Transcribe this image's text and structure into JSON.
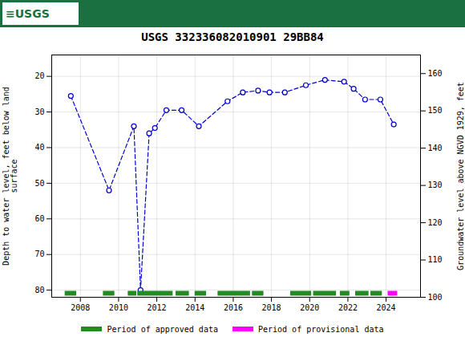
{
  "chart_data": {
    "type": "line",
    "title": "USGS 332336082010901 29BB84",
    "annotations": [
      "≡USGS"
    ],
    "ylabel": "Depth to water level, feet below land\nsurface",
    "y2label": "Groundwater level above NGVD 1929, feet",
    "x": [
      2007.5,
      2009.5,
      2010.8,
      2011.15,
      2011.6,
      2011.9,
      2012.5,
      2013.3,
      2014.2,
      2015.7,
      2016.5,
      2017.3,
      2017.9,
      2018.7,
      2019.8,
      2020.8,
      2021.8,
      2022.3,
      2022.9,
      2023.7,
      2024.4
    ],
    "values": [
      25.5,
      52.0,
      34.0,
      80.0,
      36.0,
      34.5,
      29.5,
      29.5,
      34.0,
      27.0,
      24.5,
      24.0,
      24.5,
      24.5,
      22.5,
      21.0,
      21.5,
      23.5,
      26.5,
      26.5,
      33.5
    ],
    "color": "#0000cc",
    "line_style": "dashed",
    "marker": "circle",
    "xlim": [
      2006.5,
      2025.8
    ],
    "xticks": [
      2008,
      2010,
      2012,
      2014,
      2016,
      2018,
      2020,
      2022,
      2024
    ],
    "ylim": [
      82,
      14
    ],
    "yticks": [
      20,
      30,
      40,
      50,
      60,
      70,
      80
    ],
    "y2lim": [
      100,
      165
    ],
    "y2ticks": [
      100,
      110,
      120,
      130,
      140,
      150,
      160
    ],
    "grid": true,
    "legend": "bottom",
    "periods": [
      {
        "name": "Period of approved data",
        "color": "#228B22",
        "ranges": [
          [
            2007.2,
            2007.8
          ],
          [
            2009.2,
            2009.8
          ],
          [
            2010.5,
            2010.95
          ],
          [
            2011.0,
            2012.85
          ],
          [
            2013.0,
            2013.7
          ],
          [
            2014.0,
            2014.6
          ],
          [
            2015.2,
            2016.9
          ],
          [
            2017.0,
            2017.6
          ],
          [
            2019.0,
            2020.1
          ],
          [
            2020.2,
            2021.4
          ],
          [
            2021.6,
            2022.1
          ],
          [
            2022.4,
            2023.1
          ],
          [
            2023.2,
            2023.8
          ]
        ]
      },
      {
        "name": "Period of provisional data",
        "color": "#ff00ff",
        "ranges": [
          [
            2024.1,
            2024.6
          ]
        ]
      }
    ]
  }
}
